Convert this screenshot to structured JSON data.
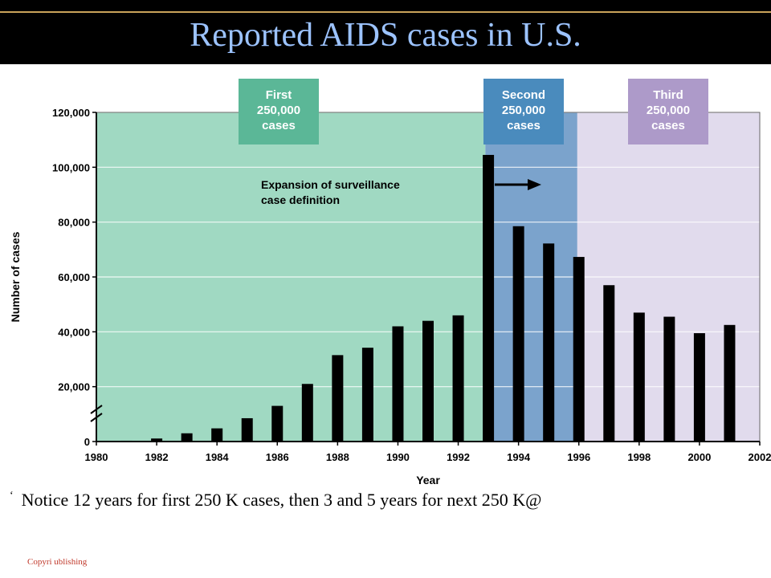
{
  "slide": {
    "title": "Reported AIDS cases in U.S.",
    "note_bullet": "‘",
    "note": "Notice 12 years for first 250 K cases, then 3 and 5 years for next 250 K@",
    "footer": "Copyri                                          ublishing"
  },
  "colors": {
    "header_bg": "#000000",
    "title_text": "#9cc3ff",
    "first_region": "#a0d9c2",
    "second_region": "#7ba3cc",
    "third_region": "#e1dbed",
    "first_label_box": "#5bb797",
    "second_label_box": "#4a8bbd",
    "third_label_box": "#ad9ac9",
    "bars": "#000000"
  },
  "chart_data": {
    "type": "bar",
    "title": "",
    "xlabel": "Year",
    "ylabel": "Number of cases",
    "ylim": [
      0,
      120000
    ],
    "y_ticks": [
      "0",
      "20,000",
      "40,000",
      "60,000",
      "80,000",
      "100,000",
      "120,000"
    ],
    "x_ticks": [
      "1980",
      "1982",
      "1984",
      "1986",
      "1988",
      "1990",
      "1992",
      "1994",
      "1996",
      "1998",
      "2000",
      "2002"
    ],
    "grid": true,
    "axis_break": true,
    "categories": [
      "1981",
      "1982",
      "1983",
      "1984",
      "1985",
      "1986",
      "1987",
      "1988",
      "1989",
      "1990",
      "1991",
      "1992",
      "1993",
      "1994",
      "1995",
      "1996",
      "1997",
      "1998",
      "1999",
      "2000",
      "2001"
    ],
    "values": [
      300,
      1100,
      3000,
      4800,
      8500,
      13000,
      21000,
      31500,
      34200,
      42000,
      44000,
      46000,
      104500,
      78500,
      72200,
      67300,
      57000,
      47000,
      45500,
      39500,
      42500
    ],
    "regions": [
      {
        "label_lines": [
          "First",
          "250,000",
          "cases"
        ],
        "from_year": 1980,
        "to_year": 1992.9
      },
      {
        "label_lines": [
          "Second",
          "250,000",
          "cases"
        ],
        "from_year": 1992.9,
        "to_year": 1995.95
      },
      {
        "label_lines": [
          "Third",
          "250,000",
          "cases"
        ],
        "from_year": 1995.95,
        "to_year": 2002
      }
    ],
    "annotation": {
      "lines": [
        "Expansion of surveillance",
        "case definition"
      ]
    }
  }
}
